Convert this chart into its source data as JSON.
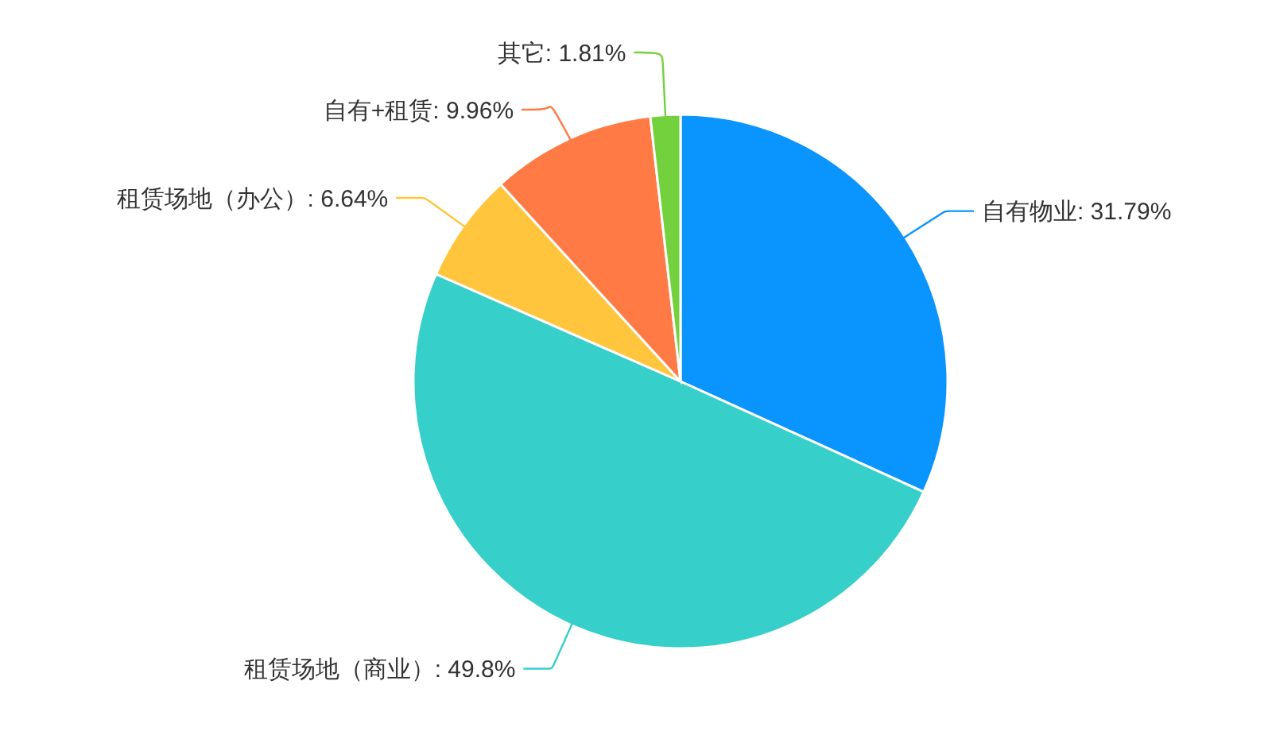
{
  "chart_data": {
    "type": "pie",
    "categories": [
      "自有物业",
      "租赁场地（商业）",
      "租赁场地（办公）",
      "自有+租赁",
      "其它"
    ],
    "values": [
      31.79,
      49.8,
      6.64,
      9.96,
      1.81
    ],
    "colors": [
      "#0a94fd",
      "#36cfc9",
      "#ffc53d",
      "#ff7a45",
      "#73d13d"
    ],
    "value_labels": [
      "31.79%",
      "49.8%",
      "6.64%",
      "9.96%",
      "1.81%"
    ]
  }
}
